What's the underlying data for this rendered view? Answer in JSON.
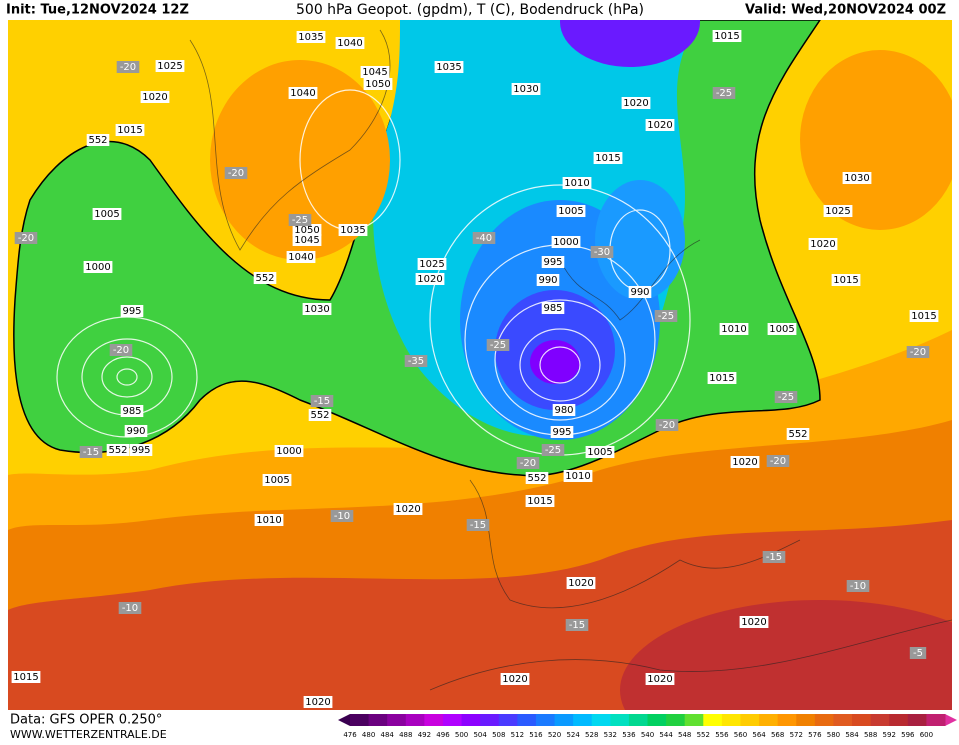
{
  "header": {
    "init": "Init: Tue,12NOV2024 12Z",
    "title": "500 hPa Geopot. (gpdm), T (C), Bodendruck (hPa)",
    "valid": "Valid: Wed,20NOV2024 00Z"
  },
  "footer": {
    "data": "Data: GFS OPER 0.250°",
    "site": "WWW.WETTERZENTRALE.DE"
  },
  "colorbar": {
    "values": [
      476,
      480,
      484,
      488,
      492,
      496,
      500,
      504,
      508,
      512,
      516,
      520,
      524,
      528,
      532,
      536,
      540,
      544,
      548,
      552,
      556,
      560,
      564,
      568,
      572,
      576,
      580,
      584,
      588,
      592,
      596,
      600
    ],
    "colors": [
      "#4b0060",
      "#6a007f",
      "#8a009f",
      "#a800bf",
      "#c800df",
      "#b000ff",
      "#8c00ff",
      "#6a1aff",
      "#4a3aff",
      "#2a5aff",
      "#1a7aff",
      "#0a9aff",
      "#00baff",
      "#00d8f0",
      "#00e0c0",
      "#00d890",
      "#00d060",
      "#20d040",
      "#60e030",
      "#ffff00",
      "#ffe600",
      "#ffcc00",
      "#ffb000",
      "#ff9600",
      "#f08000",
      "#e86a10",
      "#e05a20",
      "#d84a20",
      "#c83a30",
      "#b82a30",
      "#a82040",
      "#c02070"
    ]
  },
  "map": {
    "isobar_labels": [
      "1035",
      "1040",
      "1025",
      "1020",
      "1045",
      "1050",
      "1035",
      "1040",
      "1030",
      "1015",
      "1020",
      "1020",
      "1015",
      "552",
      "1015",
      "1010",
      "1030",
      "1005",
      "1005",
      "1025",
      "1050",
      "1045",
      "1035",
      "1000",
      "1020",
      "995",
      "1040",
      "1025",
      "1000",
      "1020",
      "990",
      "552",
      "1015",
      "990",
      "995",
      "1030",
      "985",
      "1010",
      "1005",
      "1015",
      "1015",
      "980",
      "985",
      "990",
      "995",
      "552",
      "552",
      "995",
      "1000",
      "1005",
      "1010",
      "552",
      "1005",
      "1015",
      "1020",
      "1020",
      "1010",
      "552",
      "1020",
      "1020",
      "1015",
      "1020",
      "1020",
      "1020"
    ],
    "temperature_labels": [
      "-20",
      "-25",
      "-20",
      "-25",
      "-20",
      "-40",
      "-30",
      "-25",
      "-35",
      "-25",
      "-20",
      "-20",
      "-15",
      "-25",
      "-20",
      "-15",
      "-20",
      "-25",
      "-20",
      "-10",
      "-15",
      "-15",
      "-10",
      "-10",
      "-15",
      "-5"
    ]
  }
}
